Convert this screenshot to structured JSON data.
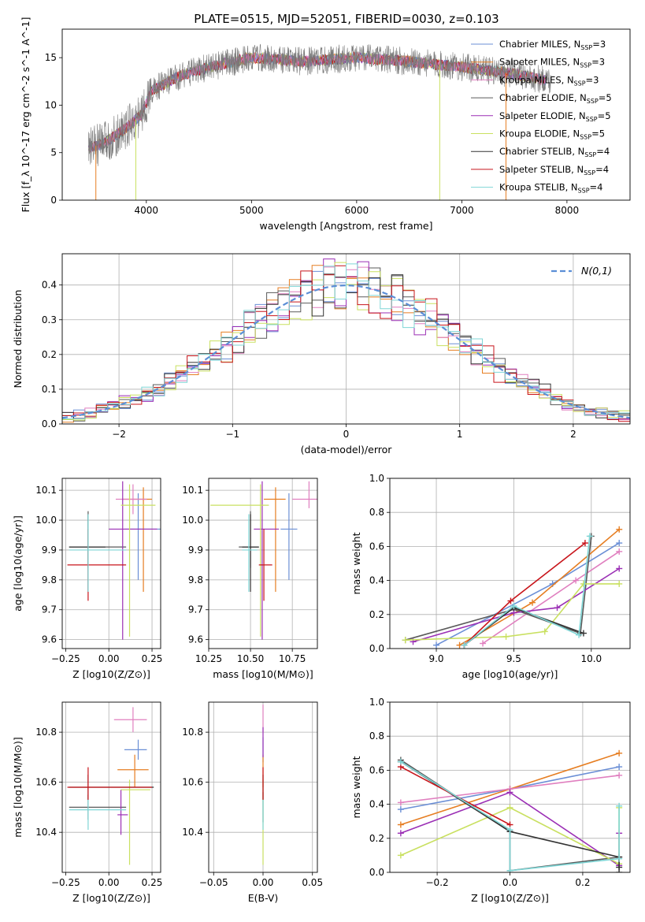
{
  "figure": {
    "title": "PLATE=0515, MJD=52051, FIBERID=0030, z=0.103"
  },
  "models": [
    {
      "label": "Chabrier MILES, N_SSP=3",
      "imf": "Chabrier MILES",
      "nssp": "3",
      "color": "#6b8fd6"
    },
    {
      "label": "Salpeter MILES, N_SSP=3",
      "imf": "Salpeter MILES",
      "nssp": "3",
      "color": "#e67e22"
    },
    {
      "label": "Kroupa MILES, N_SSP=3",
      "imf": "Kroupa MILES",
      "nssp": "3",
      "color": "#e07fbf"
    },
    {
      "label": "Chabrier ELODIE, N_SSP=5",
      "imf": "Chabrier ELODIE",
      "nssp": "5",
      "color": "#5a5a5a"
    },
    {
      "label": "Salpeter ELODIE, N_SSP=5",
      "imf": "Salpeter ELODIE",
      "nssp": "5",
      "color": "#9b2fb5"
    },
    {
      "label": "Kroupa ELODIE, N_SSP=5",
      "imf": "Kroupa ELODIE",
      "nssp": "5",
      "color": "#c9e060"
    },
    {
      "label": "Chabrier STELIB, N_SSP=4",
      "imf": "Chabrier STELIB",
      "nssp": "4",
      "color": "#333333"
    },
    {
      "label": "Salpeter STELIB, N_SSP=4",
      "imf": "Salpeter STELIB",
      "nssp": "4",
      "color": "#c8151b"
    },
    {
      "label": "Kroupa STELIB, N_SSP=4",
      "imf": "Kroupa STELIB",
      "nssp": "4",
      "color": "#7fd6d6"
    }
  ],
  "chart_data": [
    {
      "id": "spectrum",
      "type": "line",
      "xlabel": "wavelength [Angstrom, rest frame]",
      "ylabel": "Flux [f_λ 10^-17 erg cm^-2 s^-1 A^-1]",
      "xlim": [
        3200,
        8600
      ],
      "ylim": [
        0,
        18
      ],
      "xticks": [
        4000,
        5000,
        6000,
        7000,
        8000
      ],
      "yticks": [
        0,
        5,
        10,
        15
      ],
      "grid": false,
      "legend": "upper right",
      "continuum": {
        "x": [
          3450,
          3600,
          3800,
          3950,
          4050,
          4300,
          4600,
          5000,
          5500,
          6000,
          6500,
          7000,
          7500,
          7800
        ],
        "y": [
          5.5,
          6.0,
          7.5,
          9.0,
          11.5,
          13.0,
          14.0,
          15.0,
          14.6,
          15.0,
          14.6,
          14.0,
          13.3,
          12.6
        ]
      }
    },
    {
      "id": "residuals",
      "type": "line",
      "xlabel": "(data-model)/error",
      "ylabel": "Normed distribution",
      "xlim": [
        -2.5,
        2.5
      ],
      "ylim": [
        0,
        0.49
      ],
      "xticks": [
        -2,
        -1,
        0,
        1,
        2
      ],
      "yticks": [
        0.0,
        0.1,
        0.2,
        0.3,
        0.4
      ],
      "grid": true,
      "legend_label": "N(0,1)",
      "legend": "upper right",
      "gaussian": {
        "mu": 0,
        "sigma": 1,
        "color": "#5b8ed6"
      }
    },
    {
      "id": "age_vs_Z",
      "type": "scatter",
      "xlabel": "Z [log10(Z/Z⊙)]",
      "ylabel": "age [log10(age/yr)]",
      "xlim": [
        -0.27,
        0.3
      ],
      "ylim": [
        9.57,
        10.14
      ],
      "xticks": [
        -0.25,
        0.0,
        0.25
      ],
      "yticks": [
        9.6,
        9.7,
        9.8,
        9.9,
        10.0,
        10.1
      ],
      "grid": true,
      "points": [
        {
          "x": 0.17,
          "y": 9.97,
          "xerr": [
            0.08,
            0.13
          ],
          "yerr": [
            0.17,
            0.12
          ]
        },
        {
          "x": 0.2,
          "y": 10.07,
          "xerr": [
            0.12,
            0.05
          ],
          "yerr": [
            0.31,
            0.04
          ]
        },
        {
          "x": 0.14,
          "y": 10.07,
          "xerr": [
            0.1,
            0.08
          ],
          "yerr": [
            0.05,
            0.05
          ]
        },
        {
          "x": -0.12,
          "y": 9.91,
          "xerr": [
            0.11,
            0.22
          ],
          "yerr": [
            0.07,
            0.12
          ]
        },
        {
          "x": 0.08,
          "y": 9.97,
          "xerr": [
            0.08,
            0.2
          ],
          "yerr": [
            0.37,
            0.16
          ]
        },
        {
          "x": 0.12,
          "y": 10.05,
          "xerr": [
            0.05,
            0.15
          ],
          "yerr": [
            0.44,
            0.07
          ]
        },
        {
          "x": -0.12,
          "y": 9.91,
          "xerr": [
            0.11,
            0.1
          ],
          "yerr": [
            0.15,
            0.11
          ]
        },
        {
          "x": -0.12,
          "y": 9.85,
          "xerr": [
            0.12,
            0.22
          ],
          "yerr": [
            0.12,
            0.12
          ]
        },
        {
          "x": -0.12,
          "y": 9.9,
          "xerr": [
            0.11,
            0.22
          ],
          "yerr": [
            0.14,
            0.12
          ]
        }
      ]
    },
    {
      "id": "age_vs_mass",
      "type": "scatter",
      "xlabel": "mass [log10(M/M⊙)]",
      "ylabel": "",
      "xlim": [
        10.25,
        10.9
      ],
      "ylim": [
        9.57,
        10.14
      ],
      "xticks": [
        10.25,
        10.5,
        10.75
      ],
      "yticks": [
        9.6,
        9.7,
        9.8,
        9.9,
        10.0,
        10.1
      ],
      "grid": true,
      "points": [
        {
          "x": 10.73,
          "y": 9.97,
          "xerr": [
            0.05,
            0.05
          ],
          "yerr": [
            0.17,
            0.12
          ]
        },
        {
          "x": 10.65,
          "y": 10.07,
          "xerr": [
            0.07,
            0.06
          ],
          "yerr": [
            0.31,
            0.04
          ]
        },
        {
          "x": 10.85,
          "y": 10.07,
          "xerr": [
            0.1,
            0.05
          ],
          "yerr": [
            0.03,
            0.06
          ]
        },
        {
          "x": 10.5,
          "y": 9.91,
          "xerr": [
            0.07,
            0.05
          ],
          "yerr": [
            0.07,
            0.12
          ]
        },
        {
          "x": 10.57,
          "y": 9.97,
          "xerr": [
            0.05,
            0.1
          ],
          "yerr": [
            0.37,
            0.16
          ]
        },
        {
          "x": 10.56,
          "y": 10.05,
          "xerr": [
            0.3,
            0.05
          ],
          "yerr": [
            0.44,
            0.07
          ]
        },
        {
          "x": 10.5,
          "y": 9.91,
          "xerr": [
            0.05,
            0.05
          ],
          "yerr": [
            0.15,
            0.11
          ]
        },
        {
          "x": 10.58,
          "y": 9.85,
          "xerr": [
            0.03,
            0.05
          ],
          "yerr": [
            0.12,
            0.12
          ]
        },
        {
          "x": 10.49,
          "y": 9.9,
          "xerr": [
            0.04,
            0.05
          ],
          "yerr": [
            0.14,
            0.12
          ]
        }
      ]
    },
    {
      "id": "weight_vs_age",
      "type": "line",
      "xlabel": "age [log10(age/yr)]",
      "ylabel": "mass weight",
      "xlim": [
        8.7,
        10.25
      ],
      "ylim": [
        0,
        1.0
      ],
      "xticks": [
        9.0,
        9.5,
        10.0
      ],
      "yticks": [
        0.0,
        0.2,
        0.4,
        0.6,
        0.8,
        1.0
      ],
      "grid": true,
      "series": [
        {
          "x": [
            9.0,
            9.75,
            10.18
          ],
          "y": [
            0.02,
            0.38,
            0.62
          ]
        },
        {
          "x": [
            9.15,
            9.62,
            10.18
          ],
          "y": [
            0.02,
            0.27,
            0.7
          ]
        },
        {
          "x": [
            9.3,
            9.9,
            10.18
          ],
          "y": [
            0.03,
            0.4,
            0.57
          ]
        },
        {
          "x": [
            8.8,
            9.5,
            9.93,
            10.0
          ],
          "y": [
            0.05,
            0.23,
            0.09,
            0.66
          ]
        },
        {
          "x": [
            8.85,
            9.5,
            9.78,
            10.18
          ],
          "y": [
            0.04,
            0.21,
            0.24,
            0.47
          ]
        },
        {
          "x": [
            8.8,
            9.45,
            9.7,
            9.95,
            10.18
          ],
          "y": [
            0.05,
            0.07,
            0.1,
            0.38,
            0.38
          ]
        },
        {
          "x": [
            9.18,
            9.5,
            9.95
          ],
          "y": [
            0.02,
            0.24,
            0.09
          ]
        },
        {
          "x": [
            9.18,
            9.48,
            9.96
          ],
          "y": [
            0.02,
            0.28,
            0.62
          ]
        },
        {
          "x": [
            9.18,
            9.5,
            9.92,
            9.99
          ],
          "y": [
            0.02,
            0.25,
            0.08,
            0.66
          ]
        }
      ]
    },
    {
      "id": "mass_vs_Z",
      "type": "scatter",
      "xlabel": "Z [log10(Z/Z⊙)]",
      "ylabel": "mass [log10(M/M⊙)]",
      "xlim": [
        -0.27,
        0.3
      ],
      "ylim": [
        10.24,
        10.92
      ],
      "xticks": [
        -0.25,
        0.0,
        0.25
      ],
      "yticks": [
        10.4,
        10.6,
        10.8
      ],
      "grid": true,
      "points": [
        {
          "x": 0.17,
          "y": 10.73,
          "xerr": [
            0.08,
            0.05
          ],
          "yerr": [
            0.04,
            0.04
          ]
        },
        {
          "x": 0.15,
          "y": 10.65,
          "xerr": [
            0.1,
            0.08
          ],
          "yerr": [
            0.07,
            0.06
          ]
        },
        {
          "x": 0.14,
          "y": 10.85,
          "xerr": [
            0.11,
            0.08
          ],
          "yerr": [
            0.05,
            0.05
          ]
        },
        {
          "x": -0.12,
          "y": 10.5,
          "xerr": [
            0.11,
            0.22
          ],
          "yerr": [
            0.05,
            0.05
          ]
        },
        {
          "x": 0.07,
          "y": 10.47,
          "xerr": [
            0.02,
            0.04
          ],
          "yerr": [
            0.08,
            0.1
          ]
        },
        {
          "x": 0.12,
          "y": 10.57,
          "xerr": [
            0.05,
            0.12
          ],
          "yerr": [
            0.3,
            0.04
          ]
        },
        {
          "x": -0.12,
          "y": 10.58,
          "xerr": [
            0.11,
            0.38
          ],
          "yerr": [
            0.05,
            0.05
          ]
        },
        {
          "x": -0.12,
          "y": 10.58,
          "xerr": [
            0.12,
            0.37
          ],
          "yerr": [
            0.05,
            0.08
          ]
        },
        {
          "x": -0.12,
          "y": 10.49,
          "xerr": [
            0.11,
            0.22
          ],
          "yerr": [
            0.08,
            0.04
          ]
        }
      ]
    },
    {
      "id": "mass_vs_EBV",
      "type": "scatter",
      "xlabel": "E(B-V)",
      "ylabel": "",
      "xlim": [
        -0.055,
        0.055
      ],
      "ylim": [
        10.24,
        10.92
      ],
      "xticks": [
        -0.05,
        0.0,
        0.05
      ],
      "yticks": [
        10.4,
        10.6,
        10.8
      ],
      "grid": true,
      "points": [
        {
          "x": 0,
          "y": 10.73,
          "yerr": [
            0.05,
            0.05
          ]
        },
        {
          "x": 0,
          "y": 10.65,
          "yerr": [
            0.07,
            0.06
          ]
        },
        {
          "x": 0,
          "y": 10.85,
          "yerr": [
            0.05,
            0.06
          ]
        },
        {
          "x": 0,
          "y": 10.5,
          "yerr": [
            0.06,
            0.06
          ]
        },
        {
          "x": 0,
          "y": 10.75,
          "yerr": [
            0.05,
            0.07
          ]
        },
        {
          "x": 0,
          "y": 10.57,
          "yerr": [
            0.3,
            0.04
          ]
        },
        {
          "x": 0,
          "y": 10.58,
          "yerr": [
            0.05,
            0.05
          ]
        },
        {
          "x": 0,
          "y": 10.58,
          "yerr": [
            0.05,
            0.08
          ]
        },
        {
          "x": 0,
          "y": 10.49,
          "yerr": [
            0.08,
            0.04
          ]
        }
      ]
    },
    {
      "id": "weight_vs_Z",
      "type": "line",
      "xlabel": "Z [log10(Z/Z⊙)]",
      "ylabel": "mass weight",
      "xlim": [
        -0.33,
        0.33
      ],
      "ylim": [
        0,
        1.0
      ],
      "xticks": [
        -0.2,
        0.0,
        0.2
      ],
      "yticks": [
        0.0,
        0.2,
        0.4,
        0.6,
        0.8,
        1.0
      ],
      "grid": true,
      "series": [
        {
          "x": [
            -0.3,
            0.0,
            0.3
          ],
          "y": [
            0.37,
            0.49,
            0.62
          ]
        },
        {
          "x": [
            -0.3,
            0.0,
            0.3
          ],
          "y": [
            0.28,
            0.49,
            0.7
          ]
        },
        {
          "x": [
            -0.3,
            0.0,
            0.3
          ],
          "y": [
            0.41,
            0.49,
            0.57
          ]
        },
        {
          "x": [
            -0.3,
            0.0,
            0.0,
            0.3,
            0.3
          ],
          "y": [
            0.66,
            0.24,
            0.01,
            0.09,
            0.0
          ]
        },
        {
          "x": [
            -0.3,
            0.0,
            0.3,
            0.3
          ],
          "y": [
            0.23,
            0.47,
            0.04,
            0.23
          ]
        },
        {
          "x": [
            -0.3,
            0.0,
            0.3,
            0.3
          ],
          "y": [
            0.1,
            0.38,
            0.05,
            0.38
          ]
        },
        {
          "x": [
            -0.3,
            0.0,
            0.3,
            0.3
          ],
          "y": [
            0.65,
            0.24,
            0.09,
            0.03
          ]
        },
        {
          "x": [
            -0.3,
            0.0
          ],
          "y": [
            0.62,
            0.28
          ]
        },
        {
          "x": [
            -0.3,
            0.0,
            0.0,
            0.3,
            0.3
          ],
          "y": [
            0.65,
            0.25,
            0.01,
            0.08,
            0.39
          ]
        }
      ]
    }
  ]
}
